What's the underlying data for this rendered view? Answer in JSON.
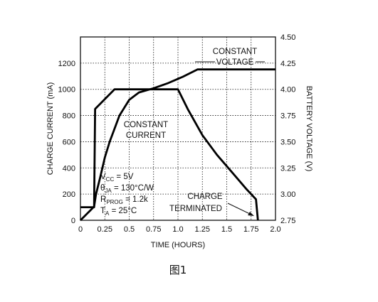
{
  "chart_data": {
    "type": "line",
    "xlabel": "TIME (HOURS)",
    "ylabel_left": "CHARGE CURRENT (mA)",
    "ylabel_right": "BATTERY VOLTAGE (V)",
    "xlim": [
      0,
      2.0
    ],
    "ylim_left": [
      0,
      1400
    ],
    "ylim_right": [
      2.75,
      4.5
    ],
    "x_ticks": [
      "0",
      "0.25",
      "0.5",
      "0.75",
      "1.0",
      "1.25",
      "1.5",
      "1.75",
      "2.0"
    ],
    "y_left_ticks": [
      "0",
      "200",
      "400",
      "600",
      "800",
      "1000",
      "1200"
    ],
    "y_right_ticks": [
      "2.75",
      "3.00",
      "3.25",
      "3.50",
      "3.75",
      "4.00",
      "4.25",
      "4.50"
    ],
    "grid": true,
    "series": [
      {
        "axis": "left",
        "points": [
          [
            0,
            100
          ],
          [
            0.14,
            100
          ],
          [
            0.15,
            850
          ],
          [
            0.35,
            1000
          ],
          [
            0.5,
            1000
          ],
          [
            0.75,
            1000
          ],
          [
            1.0,
            1000
          ],
          [
            1.1,
            850
          ],
          [
            1.25,
            650
          ],
          [
            1.4,
            500
          ],
          [
            1.55,
            370
          ],
          [
            1.7,
            240
          ],
          [
            1.8,
            160
          ],
          [
            1.82,
            0
          ]
        ]
      },
      {
        "axis": "right",
        "points": [
          [
            0,
            2.75
          ],
          [
            0.14,
            2.88
          ],
          [
            0.16,
            3.0
          ],
          [
            0.2,
            3.15
          ],
          [
            0.25,
            3.35
          ],
          [
            0.3,
            3.5
          ],
          [
            0.4,
            3.75
          ],
          [
            0.5,
            3.9
          ],
          [
            0.6,
            3.97
          ],
          [
            0.75,
            4.01
          ],
          [
            0.9,
            4.06
          ],
          [
            1.05,
            4.12
          ],
          [
            1.2,
            4.19
          ],
          [
            1.4,
            4.19
          ],
          [
            1.6,
            4.19
          ],
          [
            1.8,
            4.19
          ],
          [
            2.0,
            4.19
          ]
        ]
      }
    ],
    "annotations": {
      "constant_voltage": [
        "CONSTANT",
        "VOLTAGE"
      ],
      "constant_current": [
        "CONSTANT",
        "CURRENT"
      ],
      "charge_terminated": [
        "CHARGE",
        "TERMINATED"
      ],
      "conditions": [
        {
          "main": "V",
          "sub": "CC",
          "rest": " = 5V"
        },
        {
          "main": "θ",
          "sub": "JA",
          "rest": " = 130°C/W"
        },
        {
          "main": "R",
          "sub": "PROG",
          "rest": " = 1.2k"
        },
        {
          "main": "T",
          "sub": "A",
          "rest": " = 25°C"
        }
      ]
    }
  },
  "caption": "图1"
}
